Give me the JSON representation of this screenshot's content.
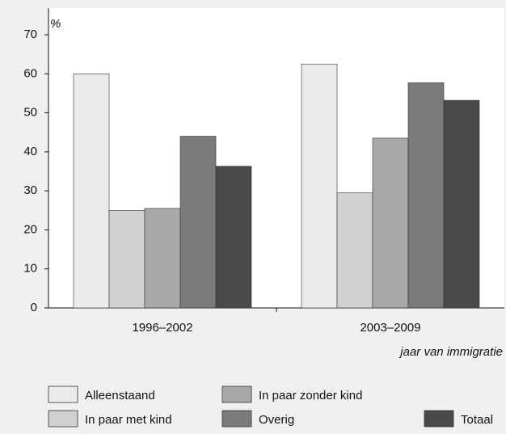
{
  "chart_data": {
    "type": "bar",
    "y_unit": "%",
    "x_label": "jaar van immigratie",
    "categories": [
      "1996–2002",
      "2003–2009"
    ],
    "series": [
      {
        "name": "Alleenstaand",
        "color": "#ebebeb",
        "values": [
          60,
          62.5
        ]
      },
      {
        "name": "In paar met kind",
        "color": "#d0d0d2",
        "values": [
          25,
          29.5
        ]
      },
      {
        "name": "In paar zonder kind",
        "color": "#a8a8aa",
        "values": [
          25.5,
          43.5
        ]
      },
      {
        "name": "Overig",
        "color": "#7b7b7d",
        "values": [
          44,
          57.7
        ]
      },
      {
        "name": "Totaal",
        "color": "#4a4a4c",
        "values": [
          36.3,
          53.2
        ]
      }
    ],
    "ylim": [
      0,
      70
    ],
    "yticks": [
      0,
      10,
      20,
      30,
      40,
      50,
      60,
      70
    ],
    "grid": false
  }
}
